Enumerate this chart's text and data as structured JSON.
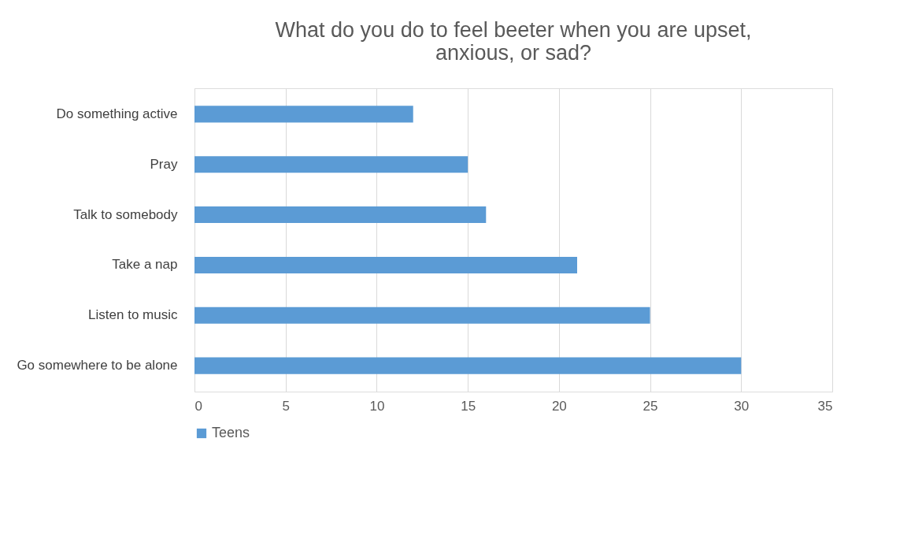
{
  "chart_data": {
    "type": "bar",
    "orientation": "horizontal",
    "title": "What do you do to feel beeter when you are upset,\nanxious, or sad?",
    "categories": [
      "Do something active",
      "Pray",
      "Talk to somebody",
      "Take a nap",
      "Listen to music",
      "Go somewhere to be alone"
    ],
    "series": [
      {
        "name": "Teens",
        "color": "#5b9bd5",
        "values": [
          12,
          15,
          16,
          21,
          25,
          30
        ]
      }
    ],
    "xlim": [
      0,
      35
    ],
    "xticks": [
      0,
      5,
      10,
      15,
      20,
      25,
      30,
      35
    ],
    "grid": "x",
    "legend": "bottom"
  }
}
